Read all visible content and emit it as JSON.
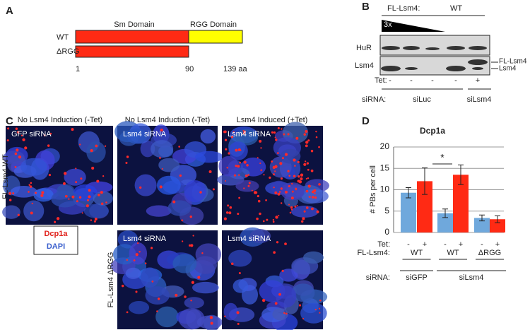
{
  "panel_a": {
    "label": "A",
    "domains": [
      "Sm Domain",
      "RGG Domain"
    ],
    "constructs": [
      "WT",
      "ΔRGG"
    ],
    "positions": [
      "1",
      "90",
      "139 aa"
    ]
  },
  "panel_b": {
    "label": "B",
    "construct_label": "FL-Lsm4:",
    "construct": "WT",
    "gradient": "3x",
    "blots": [
      "HuR",
      "Lsm4"
    ],
    "bands": [
      "FL-Lsm4",
      "Lsm4"
    ],
    "tet_label": "Tet:",
    "tet": [
      "-",
      "-",
      "-",
      "-",
      "+"
    ],
    "sirna_label": "siRNA:",
    "sirna": [
      "siLuc",
      "siLsm4"
    ]
  },
  "panel_c": {
    "label": "C",
    "columns": [
      "No Lsm4 Induction (-Tet)",
      "No Lsm4 Induction (-Tet)",
      "Lsm4 Induced (+Tet)"
    ],
    "rows": [
      "FL-Lsm4 WT",
      "FL-Lsm4 ΔRGG"
    ],
    "images": [
      "GFP siRNA",
      "Lsm4 siRNA",
      "Lsm4 siRNA",
      "Lsm4 siRNA",
      "Lsm4 siRNA"
    ],
    "legend": [
      "Dcp1a",
      "DAPI"
    ]
  },
  "panel_d": {
    "label": "D"
  },
  "chart_data": {
    "type": "bar",
    "title": "Dcp1a",
    "y_label": "# PBs per cell",
    "categories": [
      "-",
      "+",
      "-",
      "+",
      "-",
      "+"
    ],
    "values": [
      9.3,
      12,
      4.5,
      13.5,
      3.4,
      3.1
    ],
    "errors": [
      1.2,
      3.1,
      1.0,
      2.3,
      0.7,
      0.8
    ],
    "colors": [
      "#6fa8dc",
      "#ff2a14",
      "#6fa8dc",
      "#ff2a14",
      "#6fa8dc",
      "#ff2a14"
    ],
    "ylim": [
      0,
      20
    ],
    "yticks": [
      0,
      5,
      10,
      15,
      20
    ],
    "grid": true,
    "tet_label": "Tet:",
    "construct_label": "FL-Lsm4:",
    "constructs": [
      "WT",
      "WT",
      "ΔRGG"
    ],
    "sirna_label": "siRNA:",
    "sirna": [
      "siGFP",
      "siLsm4"
    ],
    "significance": "*"
  }
}
